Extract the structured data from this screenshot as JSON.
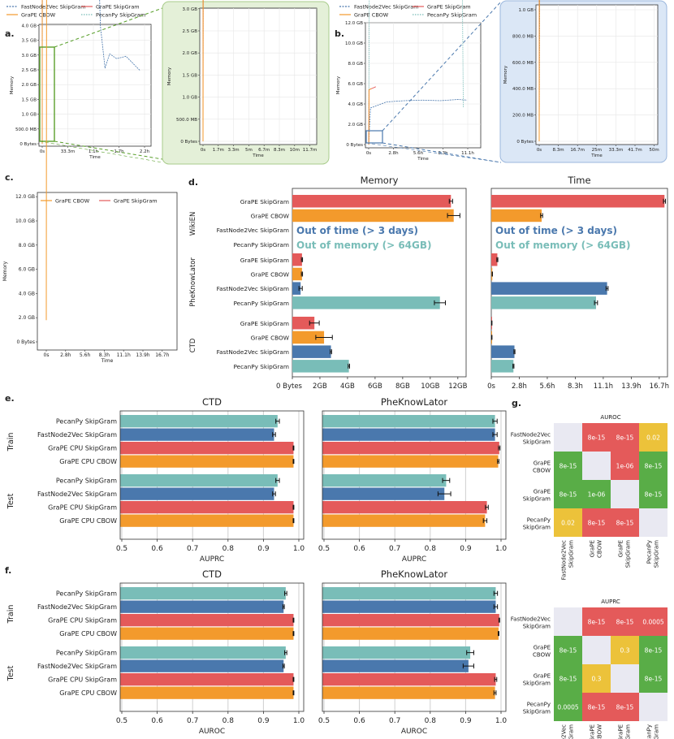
{
  "colors": {
    "red": "#e45a5a",
    "orange": "#f39a2c",
    "blue": "#4a78ad",
    "teal": "#79bdb8",
    "green_cell": "#59ad47",
    "yellow_cell": "#ecc23a",
    "diag_cell": "#e9e9f2",
    "zoom_green": "#e4f0d8",
    "zoom_blue": "#dbe7f6"
  },
  "panels": {
    "a": {
      "label": "a."
    },
    "b": {
      "label": "b."
    },
    "c": {
      "label": "c."
    },
    "d": {
      "label": "d."
    },
    "e": {
      "label": "e."
    },
    "f": {
      "label": "f."
    },
    "g": {
      "label": "g."
    }
  },
  "legend_ab": {
    "fastnode": "FastNode2Vec SkipGram",
    "cbow": "GraPE CBOW",
    "skipgram": "GraPE SkipGram",
    "pecanpy": "PecanPy SkipGram"
  },
  "legend_c": {
    "cbow": "GraPE CBOW",
    "skipgram": "GraPE SkipGram"
  },
  "chart_data": [
    {
      "id": "a-main",
      "type": "line",
      "ylabel": "Memory",
      "xlabel": "Time",
      "yticks": [
        "0 Bytes",
        "500.0 MB",
        "1.0 GB",
        "1.5 GB",
        "2.0 GB",
        "2.5 GB",
        "3.0 GB",
        "3.5 GB",
        "4.0 GB"
      ],
      "xticks": [
        "0s",
        "33.3m",
        "1.1h",
        "1.7h",
        "2.2h"
      ],
      "ylim_gb": [
        0,
        4.0
      ],
      "xlim_h": [
        0,
        2.2
      ]
    },
    {
      "id": "a-zoom",
      "type": "line",
      "ylabel": "Memory",
      "xlabel": "Time",
      "yticks": [
        "0 Bytes",
        "500.0 MB",
        "1.0 GB",
        "1.5 GB",
        "2.0 GB",
        "2.5 GB",
        "3.0 GB"
      ],
      "xticks": [
        "0s",
        "1.7m",
        "3.3m",
        "5m",
        "6.7m",
        "8.3m",
        "10m",
        "11.7m"
      ],
      "ylim_gb": [
        0,
        3.0
      ],
      "xlim_min": [
        0,
        11.7
      ]
    },
    {
      "id": "b-main",
      "type": "line",
      "ylabel": "Memory",
      "xlabel": "Time",
      "yticks": [
        "0 Bytes",
        "2.0 GB",
        "4.0 GB",
        "6.0 GB",
        "8.0 GB",
        "10.0 GB",
        "12.0 GB"
      ],
      "xticks": [
        "0s",
        "2.8h",
        "5.6h",
        "8.3h",
        "11.1h"
      ],
      "ylim_gb": [
        0,
        12.0
      ],
      "xlim_h": [
        0,
        11.1
      ]
    },
    {
      "id": "b-zoom",
      "type": "line",
      "ylabel": "Memory",
      "xlabel": "Time",
      "yticks": [
        "0 Bytes",
        "200.0 MB",
        "400.0 MB",
        "600.0 MB",
        "800.0 MB",
        "1.0 GB"
      ],
      "xticks": [
        "0s",
        "8.3m",
        "16.7m",
        "25m",
        "33.3m",
        "41.7m",
        "50m"
      ],
      "ylim_gb": [
        0,
        1.0
      ],
      "xlim_min": [
        0,
        50
      ]
    },
    {
      "id": "c",
      "type": "line",
      "ylabel": "Memory",
      "xlabel": "Time",
      "yticks": [
        "0 Bytes",
        "2.0 GB",
        "4.0 GB",
        "6.0 GB",
        "8.0 GB",
        "10.0 GB",
        "12.0 GB"
      ],
      "xticks": [
        "0s",
        "2.8h",
        "5.6h",
        "8.3h",
        "11.1h",
        "13.9h",
        "16.7h"
      ],
      "ylim_gb": [
        0,
        12.8
      ],
      "xlim_h": [
        0,
        17.5
      ]
    },
    {
      "id": "d",
      "type": "bar",
      "subtitles": [
        "Memory",
        "Time"
      ],
      "groups": [
        "WikiEN",
        "PheKnowLator",
        "CTD"
      ],
      "methods": [
        "GraPE SkipGram",
        "GraPE CBOW",
        "FastNode2Vec SkipGram",
        "PecanPy SkipGram"
      ],
      "memory_ticks": [
        "0 Bytes",
        "2GB",
        "4GB",
        "6GB",
        "8GB",
        "10GB",
        "12GB"
      ],
      "time_ticks": [
        "0s",
        "2.8h",
        "5.6h",
        "8.3h",
        "11.1h",
        "13.9h",
        "16.7h"
      ],
      "memory_gb": [
        [
          11.5,
          11.7,
          null,
          null
        ],
        [
          0.7,
          0.7,
          0.6,
          10.7
        ],
        [
          1.6,
          2.3,
          2.8,
          4.1
        ]
      ],
      "memory_err": [
        [
          0.12,
          0.45,
          0,
          0
        ],
        [
          0.04,
          0.04,
          0.12,
          0.4
        ],
        [
          0.35,
          0.6,
          0.05,
          0.05
        ]
      ],
      "time_h": [
        [
          17.2,
          5.0,
          null,
          null
        ],
        [
          0.6,
          0.1,
          11.5,
          10.4
        ],
        [
          0.05,
          0.05,
          2.3,
          2.2
        ]
      ],
      "time_err": [
        [
          0.1,
          0.1,
          0,
          0
        ],
        [
          0.05,
          0.02,
          0.1,
          0.15
        ],
        [
          0.02,
          0.02,
          0.05,
          0.05
        ]
      ],
      "annotations": [
        "Out of time (> 3 days)",
        "Out of memory (> 64GB)"
      ],
      "xlim_memory": [
        0,
        12.6
      ],
      "xlim_time": [
        0,
        17.5
      ]
    },
    {
      "id": "e",
      "type": "bar",
      "metric": "AUPRC",
      "subtitles": [
        "CTD",
        "PheKnowLator"
      ],
      "splits": [
        "Train",
        "Test"
      ],
      "methods": [
        "PecanPy SkipGram",
        "FastNode2Vec SkipGram",
        "GraPE CPU SkipGram",
        "GraPE CPU CBOW"
      ],
      "xticks": [
        "0.5",
        "0.6",
        "0.7",
        "0.8",
        "0.9",
        "1.0"
      ],
      "xlim": [
        0.5,
        1.0
      ],
      "ctd": {
        "train": [
          0.94,
          0.93,
          0.985,
          0.985
        ],
        "test": [
          0.94,
          0.93,
          0.985,
          0.985
        ]
      },
      "phe": {
        "train": [
          0.983,
          0.983,
          0.995,
          0.992
        ],
        "test": [
          0.845,
          0.84,
          0.96,
          0.955
        ]
      },
      "ctd_err": {
        "train": [
          0.005,
          0.004,
          0.001,
          0.001
        ],
        "test": [
          0.005,
          0.004,
          0.001,
          0.001
        ]
      },
      "phe_err": {
        "train": [
          0.006,
          0.006,
          0.002,
          0.002
        ],
        "test": [
          0.01,
          0.018,
          0.004,
          0.005
        ]
      }
    },
    {
      "id": "f",
      "type": "bar",
      "metric": "AUROC",
      "subtitles": [
        "CTD",
        "PheKnowLator"
      ],
      "splits": [
        "Train",
        "Test"
      ],
      "methods": [
        "PecanPy SkipGram",
        "FastNode2Vec SkipGram",
        "GraPE CPU SkipGram",
        "GraPE CPU CBOW"
      ],
      "xticks": [
        "0.5",
        "0.6",
        "0.7",
        "0.8",
        "0.9",
        "1.0"
      ],
      "xlim": [
        0.5,
        1.0
      ],
      "ctd": {
        "train": [
          0.963,
          0.957,
          0.985,
          0.985
        ],
        "test": [
          0.963,
          0.957,
          0.985,
          0.985
        ]
      },
      "phe": {
        "train": [
          0.985,
          0.985,
          0.995,
          0.993
        ],
        "test": [
          0.913,
          0.908,
          0.985,
          0.983
        ]
      },
      "ctd_err": {
        "train": [
          0.003,
          0.002,
          0.001,
          0.001
        ],
        "test": [
          0.003,
          0.002,
          0.001,
          0.001
        ]
      },
      "phe_err": {
        "train": [
          0.005,
          0.005,
          0.001,
          0.001
        ],
        "test": [
          0.01,
          0.015,
          0.003,
          0.003
        ]
      }
    },
    {
      "id": "g-auroc",
      "type": "heatmap",
      "title": "AUROC",
      "labels": [
        "FastNode2Vec SkipGram",
        "GraPE CBOW",
        "GraPE SkipGram",
        "PecanPy SkipGram"
      ],
      "cells": [
        [
          "",
          "8e-15",
          "8e-15",
          "0.02"
        ],
        [
          "8e-15",
          "",
          "1e-06",
          "8e-15"
        ],
        [
          "8e-15",
          "1e-06",
          "",
          "8e-15"
        ],
        [
          "0.02",
          "8e-15",
          "8e-15",
          ""
        ]
      ],
      "colors": [
        [
          "d",
          "r",
          "r",
          "y"
        ],
        [
          "g",
          "d",
          "r",
          "g"
        ],
        [
          "g",
          "g",
          "d",
          "g"
        ],
        [
          "y",
          "r",
          "r",
          "d"
        ]
      ]
    },
    {
      "id": "g-auprc",
      "type": "heatmap",
      "title": "AUPRC",
      "labels": [
        "FastNode2Vec SkipGram",
        "GraPE CBOW",
        "GraPE SkipGram",
        "PecanPy SkipGram"
      ],
      "cells": [
        [
          "",
          "8e-15",
          "8e-15",
          "0.0005"
        ],
        [
          "8e-15",
          "",
          "0.3",
          "8e-15"
        ],
        [
          "8e-15",
          "0.3",
          "",
          "8e-15"
        ],
        [
          "0.0005",
          "8e-15",
          "8e-15",
          ""
        ]
      ],
      "colors": [
        [
          "d",
          "r",
          "r",
          "r"
        ],
        [
          "g",
          "d",
          "y",
          "g"
        ],
        [
          "g",
          "y",
          "d",
          "g"
        ],
        [
          "g",
          "r",
          "r",
          "d"
        ]
      ]
    }
  ]
}
